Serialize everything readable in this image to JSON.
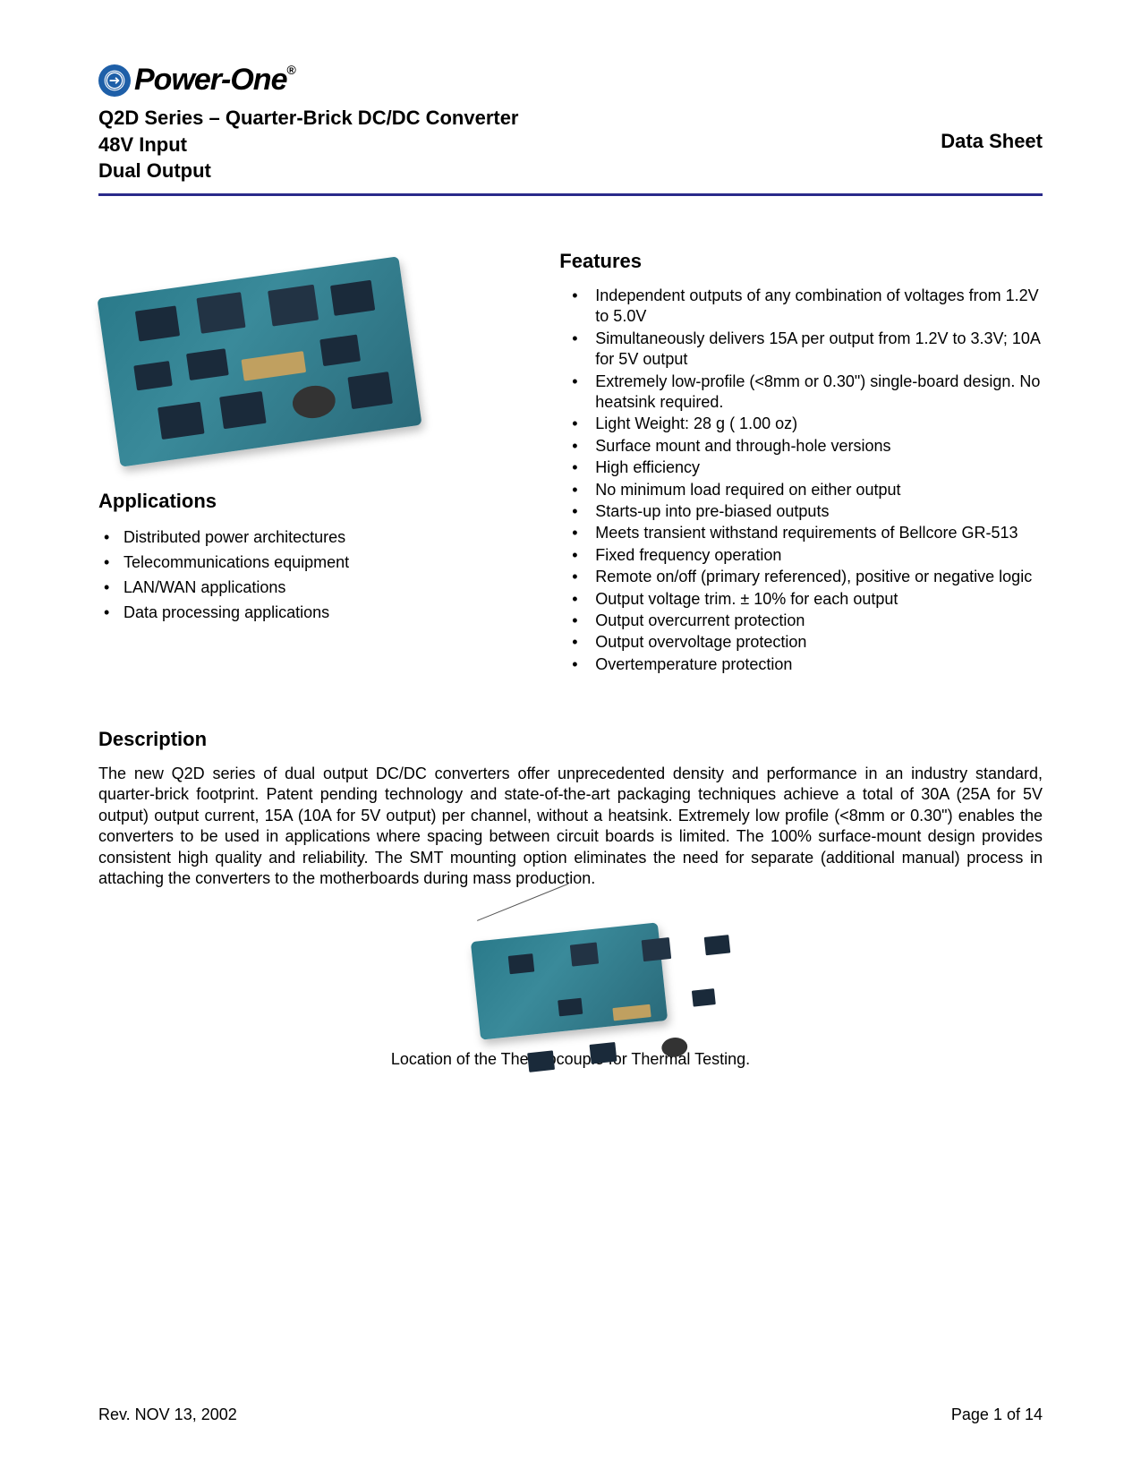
{
  "brand": {
    "logo_text": "Power-One",
    "registered": "®",
    "icon_name": "globe-arrow-icon",
    "logo_fg": "#000000",
    "logo_circle_bg": "#1e5fa8"
  },
  "header": {
    "line1": "Q2D Series – Quarter-Brick DC/DC Converter",
    "line2": "48V Input",
    "line3": "Dual Output",
    "right_label": "Data Sheet",
    "rule_color": "#2a2a8a"
  },
  "applications": {
    "heading": "Applications",
    "items": [
      "Distributed power architectures",
      "Telecommunications equipment",
      "LAN/WAN applications",
      "Data processing applications"
    ]
  },
  "features": {
    "heading": "Features",
    "items": [
      "Independent outputs of any combination of voltages from 1.2V to 5.0V",
      "Simultaneously delivers 15A per output from 1.2V to 3.3V; 10A for 5V output",
      "Extremely low-profile (<8mm or 0.30\") single-board design.  No heatsink required.",
      "Light Weight: 28 g ( 1.00 oz)",
      "Surface mount and through-hole versions",
      "High efficiency",
      "No minimum load required on either output",
      "Starts-up into pre-biased outputs",
      "Meets transient withstand requirements of Bellcore GR-513",
      "Fixed frequency operation",
      "Remote on/off (primary referenced), positive or negative logic",
      "Output voltage trim. ± 10% for each output",
      "Output overcurrent protection",
      "Output overvoltage protection",
      "Overtemperature protection"
    ]
  },
  "description": {
    "heading": "Description",
    "body": "The new Q2D series of dual output DC/DC converters offer unprecedented density and performance in an industry standard, quarter-brick footprint.   Patent pending technology and state-of-the-art packaging techniques achieve a total of 30A (25A for 5V output) output current, 15A (10A for 5V output) per channel, without a heatsink.  Extremely low profile (<8mm or 0.30\") enables the converters to be used in applications where spacing between circuit boards is limited.  The 100% surface-mount design provides consistent high quality and reliability.  The SMT mounting option eliminates the need for separate (additional manual) process in attaching the converters to the motherboards during mass production."
  },
  "figure": {
    "caption": "Location of the Thermocouple for Thermal Testing.",
    "board_color": "#2a7a8a",
    "chip_color": "#1a2a3a"
  },
  "footer": {
    "rev": "Rev. NOV 13, 2002",
    "page": "Page 1 of 14"
  },
  "typography": {
    "body_font": "Arial",
    "body_size_pt": 11,
    "heading_size_pt": 13,
    "heading_weight": "bold"
  },
  "colors": {
    "text": "#000000",
    "background": "#ffffff",
    "rule": "#2a2a8a"
  }
}
